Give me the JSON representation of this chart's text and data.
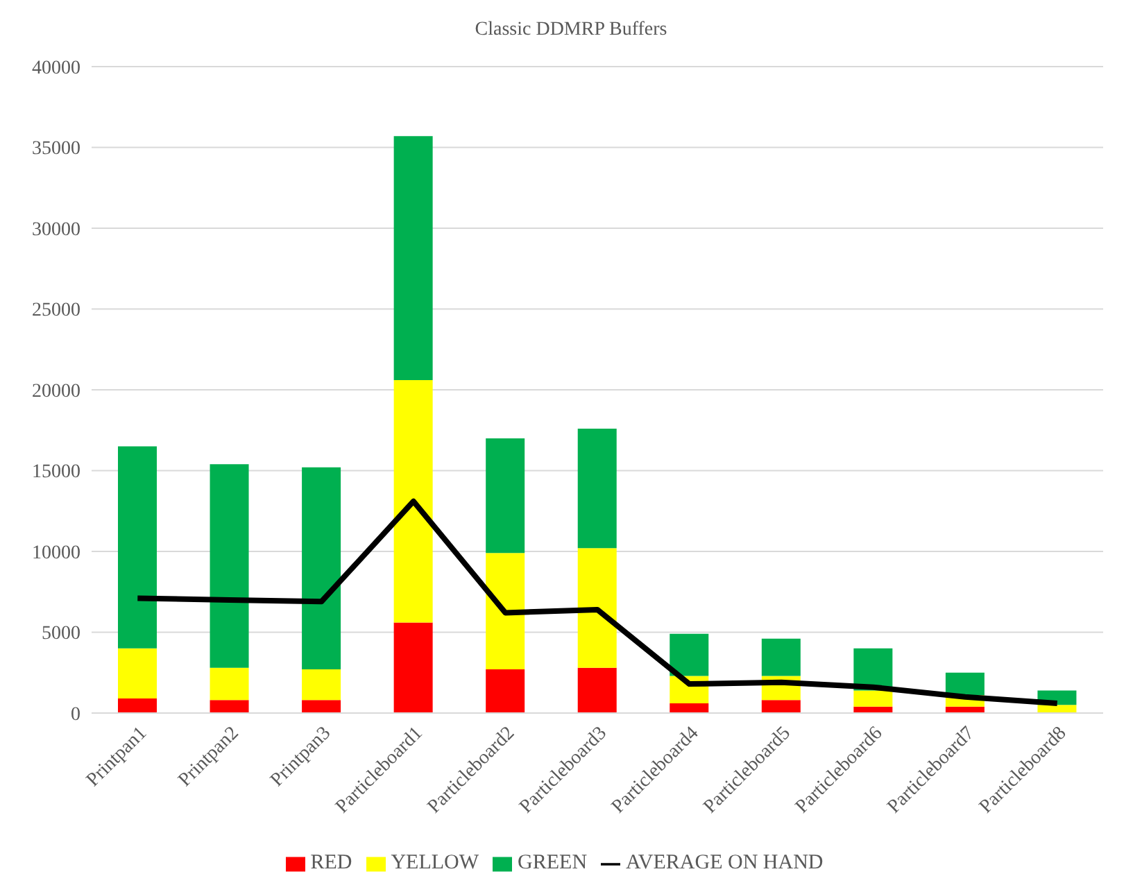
{
  "chart_data": {
    "type": "bar",
    "title": "Classic DDMRP Buffers",
    "stacked": true,
    "categories": [
      "Printpan1",
      "Printpan2",
      "Printpan3",
      "Particleboard1",
      "Particleboard2",
      "Particleboard3",
      "Particleboard4",
      "Particleboard5",
      "Particleboard6",
      "Particleboard7",
      "Particleboard8"
    ],
    "series": [
      {
        "name": "RED",
        "color": "#ff0000",
        "values": [
          900,
          800,
          800,
          5600,
          2700,
          2800,
          600,
          800,
          400,
          400,
          0
        ]
      },
      {
        "name": "YELLOW",
        "color": "#ffff00",
        "values": [
          3100,
          2000,
          1900,
          15000,
          7200,
          7400,
          1700,
          1500,
          1000,
          700,
          500
        ]
      },
      {
        "name": "GREEN",
        "color": "#00b050",
        "values": [
          12500,
          12600,
          12500,
          15100,
          7100,
          7400,
          2600,
          2300,
          2600,
          1400,
          900
        ]
      },
      {
        "name": "AVERAGE ON HAND",
        "type": "line",
        "color": "#000000",
        "values": [
          7100,
          7000,
          6900,
          13100,
          6200,
          6400,
          1800,
          1900,
          1600,
          1000,
          600
        ]
      }
    ],
    "ylim": [
      0,
      40000
    ],
    "yticks": [
      0,
      5000,
      10000,
      15000,
      20000,
      25000,
      30000,
      35000,
      40000
    ],
    "grid": "y",
    "legend": "bottom",
    "marker": "none"
  }
}
